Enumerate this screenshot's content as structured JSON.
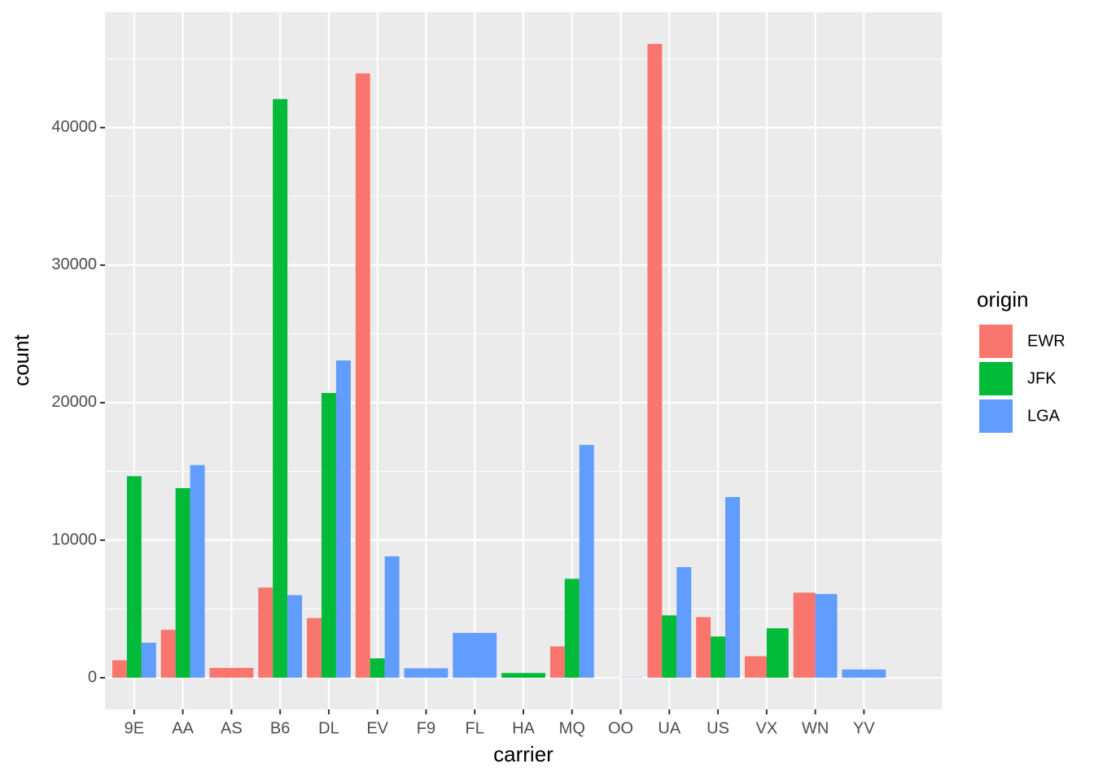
{
  "chart_data": {
    "type": "bar",
    "x_label": "carrier",
    "y_label": "count",
    "categories": [
      "9E",
      "AA",
      "AS",
      "B6",
      "DL",
      "EV",
      "F9",
      "FL",
      "HA",
      "MQ",
      "OO",
      "UA",
      "US",
      "VX",
      "WN",
      "YV"
    ],
    "series": [
      {
        "name": "EWR",
        "color": "#f8766d",
        "values": [
          1268,
          3487,
          714,
          6557,
          4342,
          43939,
          null,
          null,
          null,
          2276,
          6,
          46087,
          4405,
          1566,
          6188,
          null
        ]
      },
      {
        "name": "JFK",
        "color": "#00ba38",
        "values": [
          14651,
          13783,
          null,
          42076,
          20701,
          1408,
          null,
          null,
          342,
          7193,
          null,
          4534,
          2995,
          3596,
          null,
          null
        ]
      },
      {
        "name": "LGA",
        "color": "#619cff",
        "values": [
          2541,
          15459,
          null,
          6002,
          23067,
          8826,
          685,
          3260,
          null,
          16928,
          26,
          8044,
          13136,
          null,
          6087,
          601
        ]
      }
    ],
    "legend_title": "origin",
    "ylim": [
      -2304,
      48391
    ],
    "yticks": [
      0,
      10000,
      20000,
      30000,
      40000
    ],
    "y_minor_ticks": [
      5000,
      15000,
      25000,
      35000,
      45000
    ],
    "grid": true
  }
}
